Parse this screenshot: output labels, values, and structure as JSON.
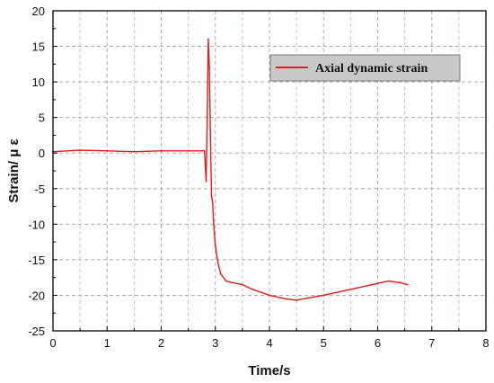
{
  "chart_data": {
    "type": "line",
    "xlabel": "Time/s",
    "ylabel": "Strain/ μ ε",
    "xlim": [
      0,
      8
    ],
    "ylim": [
      -25,
      20
    ],
    "xticks": [
      0,
      1,
      2,
      3,
      4,
      5,
      6,
      7,
      8
    ],
    "yticks": [
      -25,
      -20,
      -15,
      -10,
      -5,
      0,
      5,
      10,
      15,
      20
    ],
    "grid": true,
    "legend_position": "top-right",
    "colors": {
      "series": "#e41a1c",
      "grid_major": "#aaaaaa",
      "grid_minor": "#9be39b",
      "legend_bg": "#c8c8c8"
    },
    "series": [
      {
        "name": "Axial dynamic strain",
        "x": [
          0.0,
          0.5,
          1.0,
          1.5,
          2.0,
          2.5,
          2.75,
          2.8,
          2.83,
          2.85,
          2.87,
          2.89,
          2.91,
          2.93,
          2.95,
          2.97,
          3.0,
          3.05,
          3.1,
          3.2,
          3.3,
          3.5,
          3.7,
          4.0,
          4.3,
          4.5,
          4.7,
          5.0,
          5.3,
          5.6,
          5.9,
          6.2,
          6.4,
          6.55
        ],
        "y": [
          0.2,
          0.4,
          0.3,
          0.2,
          0.3,
          0.3,
          0.3,
          0.3,
          -4.0,
          5.0,
          16.0,
          12.0,
          2.0,
          -6.0,
          -7.0,
          -10.0,
          -13.0,
          -15.5,
          -17.0,
          -18.0,
          -18.2,
          -18.5,
          -19.2,
          -20.0,
          -20.5,
          -20.7,
          -20.4,
          -20.0,
          -19.5,
          -19.0,
          -18.5,
          -18.0,
          -18.2,
          -18.5
        ]
      }
    ]
  }
}
